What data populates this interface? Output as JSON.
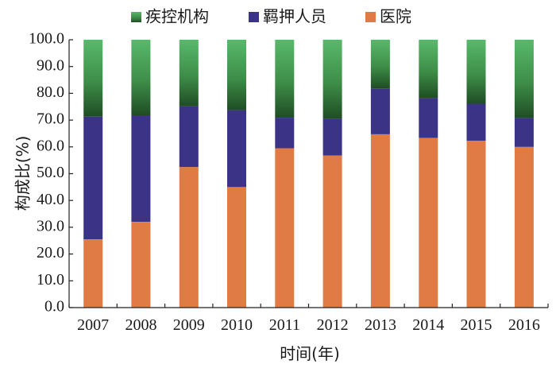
{
  "chart_data": {
    "type": "bar",
    "stacked": true,
    "categories": [
      "2007",
      "2008",
      "2009",
      "2010",
      "2011",
      "2012",
      "2013",
      "2014",
      "2015",
      "2016"
    ],
    "series": [
      {
        "name": "医院",
        "values": [
          25.5,
          32.0,
          52.5,
          45.0,
          59.5,
          56.8,
          64.7,
          63.3,
          62.3,
          60.0
        ],
        "color": "#e07b45"
      },
      {
        "name": "羁押人员",
        "values": [
          45.8,
          39.8,
          22.7,
          28.7,
          11.4,
          13.7,
          17.1,
          15.0,
          13.8,
          10.8
        ],
        "color": "#3b3486"
      },
      {
        "name": "疾控机构",
        "values": [
          28.7,
          28.2,
          24.8,
          26.3,
          29.1,
          29.5,
          18.2,
          21.7,
          23.9,
          29.2
        ],
        "color": "#4aab5a"
      }
    ],
    "xlabel": "时间(年)",
    "ylabel": "构成比(%)",
    "ylim": [
      0,
      100
    ],
    "yticks": [
      "0.0",
      "10.0",
      "20.0",
      "30.0",
      "40.0",
      "50.0",
      "60.0",
      "70.0",
      "80.0",
      "90.0",
      "100.0"
    ],
    "legend": {
      "position": "top",
      "order": [
        "疾控机构",
        "羁押人员",
        "医院"
      ]
    }
  }
}
